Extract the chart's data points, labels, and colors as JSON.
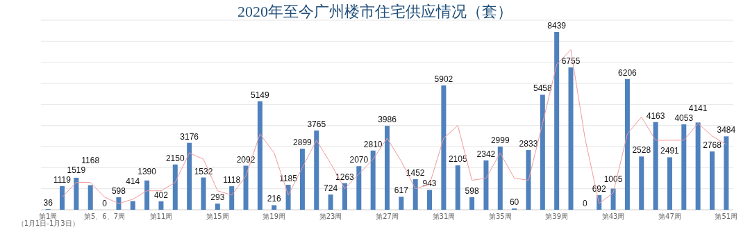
{
  "chart_data": {
    "type": "bar",
    "title": "2020年至今广州楼市住宅供应情况（套）",
    "categories": [
      "第1周（1月1日-1月3日）",
      null,
      null,
      null,
      "第5、6、7周",
      null,
      null,
      null,
      "第11周",
      null,
      null,
      null,
      "第15周",
      null,
      null,
      null,
      "第19周",
      null,
      null,
      null,
      "第23周",
      null,
      null,
      null,
      "第27周",
      null,
      null,
      null,
      "第31周",
      null,
      null,
      null,
      "第35周",
      null,
      null,
      null,
      "第39周",
      null,
      null,
      null,
      "第43周",
      null,
      null,
      null,
      "第47周",
      null,
      null,
      null,
      "第51周"
    ],
    "series": [
      {
        "color": "#4f81bd",
        "values": [
          36,
          1119,
          1519,
          1168,
          0,
          598,
          414,
          1390,
          402,
          2150,
          3176,
          1532,
          293,
          1118,
          2092,
          5149,
          216,
          1185,
          2899,
          3765,
          724,
          1263,
          2070,
          2810,
          3986,
          617,
          1452,
          943,
          5902,
          2105,
          598,
          2342,
          2999,
          60,
          2833,
          5458,
          8439,
          6755,
          0,
          692,
          1005,
          6206,
          2528,
          4163,
          2491,
          4053,
          4141,
          2768,
          3484
        ],
        "value_labels": [
          "36",
          "1119",
          "1519",
          "1168",
          "0",
          "598",
          "414",
          "1390",
          "402",
          "2150",
          "3176",
          "1532",
          "293",
          "1118",
          "2092",
          "5149",
          "216",
          "1185",
          "2899",
          "3765",
          "724",
          "1263",
          "2070",
          "2810",
          "3986",
          "617",
          "1452",
          "943",
          "5902",
          "2105",
          "598",
          "2342",
          "2999",
          "60",
          "2833",
          "5458",
          "8439",
          "6755",
          "0",
          "692",
          "1005",
          "6206",
          "2528",
          "4163",
          "2491",
          "4053",
          "4141",
          "2768",
          "3484"
        ]
      },
      {
        "type": "line",
        "color": "#f29a9a",
        "values": [
          null,
          600,
          1300,
          1300,
          600,
          300,
          500,
          900,
          900,
          1300,
          2700,
          2400,
          900,
          700,
          1600,
          3600,
          2700,
          700,
          2000,
          3300,
          2200,
          1000,
          1700,
          2400,
          3400,
          2300,
          1000,
          1200,
          3400,
          4000,
          1400,
          1500,
          2700,
          1500,
          1400,
          4100,
          6900,
          7600,
          3400,
          300,
          800,
          3600,
          4400,
          3300,
          3300,
          3300,
          4100,
          3500,
          3100
        ]
      }
    ],
    "ylim": [
      0,
      9000
    ],
    "yticks": [
      {
        "value": 0,
        "label": null
      },
      {
        "value": 1000,
        "label": null
      },
      {
        "value": 2000,
        "label": null
      },
      {
        "value": 3000,
        "label": null
      },
      {
        "value": 4000,
        "label": null
      },
      {
        "value": 5000,
        "label": null
      },
      {
        "value": 6000,
        "label": null
      },
      {
        "value": 7000,
        "label": null
      },
      {
        "value": 8000,
        "label": null
      },
      {
        "value": 9000,
        "label": null
      }
    ],
    "grid": "y",
    "tick_labels": "x"
  }
}
